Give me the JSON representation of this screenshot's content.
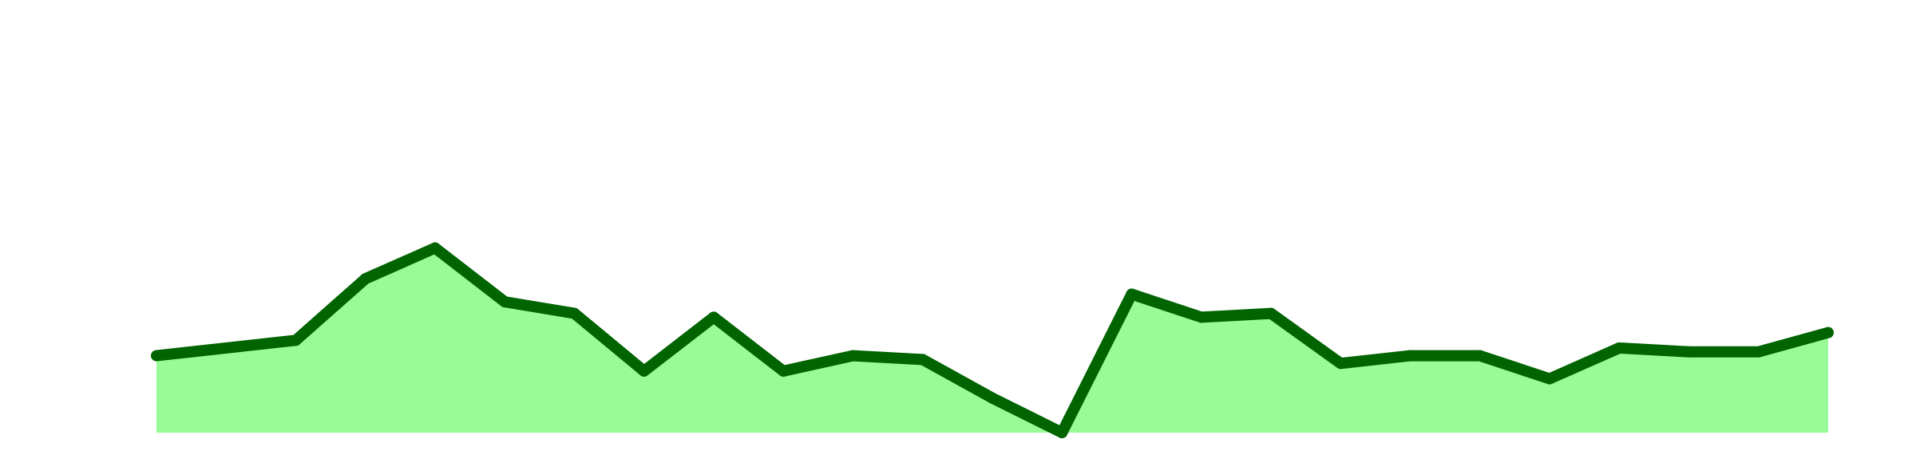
{
  "chart_data": {
    "type": "area",
    "title": "",
    "xlabel": "",
    "ylabel": "",
    "x": [
      1,
      2,
      3,
      4,
      5,
      6,
      7,
      8,
      9,
      10,
      11,
      12,
      13,
      14,
      15,
      16,
      17,
      18,
      19,
      20,
      21,
      22,
      23,
      24,
      25
    ],
    "series": [
      {
        "values": [
          30,
          31,
          32,
          40,
          44,
          37,
          35.5,
          28,
          35,
          28,
          30,
          29.5,
          24.5,
          20,
          38,
          35,
          35.5,
          29,
          30,
          30,
          27,
          31,
          30.5,
          30.5,
          33
        ]
      }
    ],
    "ylim": [
      20,
      70
    ],
    "grid": false,
    "legend": "none",
    "colors": {
      "line": "#006400",
      "fill": "#98fb98",
      "background": "#ffffff"
    }
  }
}
